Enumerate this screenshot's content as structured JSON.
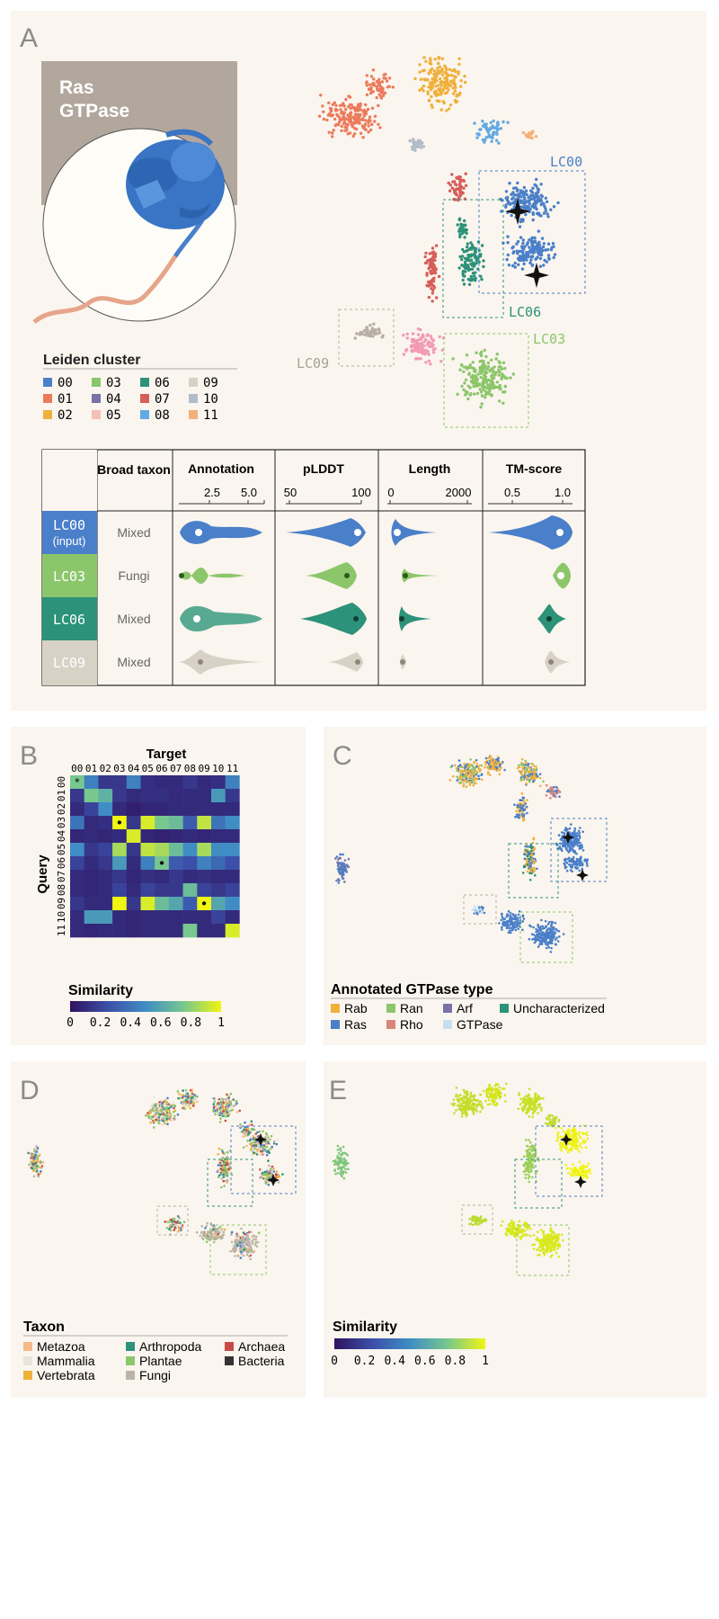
{
  "panel_labels": {
    "a": "A",
    "b": "B",
    "c": "C",
    "d": "D",
    "e": "E"
  },
  "protein_label": [
    "Ras",
    "GTPase"
  ],
  "leiden": {
    "title": "Leiden cluster",
    "items": [
      {
        "id": "00",
        "color": "#4a7fc9"
      },
      {
        "id": "01",
        "color": "#ec7a5c"
      },
      {
        "id": "02",
        "color": "#f0b03c"
      },
      {
        "id": "03",
        "color": "#8cc66b"
      },
      {
        "id": "04",
        "color": "#7773a9"
      },
      {
        "id": "05",
        "color": "#f2c0b7"
      },
      {
        "id": "06",
        "color": "#2c9279"
      },
      {
        "id": "07",
        "color": "#d65e59"
      },
      {
        "id": "08",
        "color": "#63a9e3"
      },
      {
        "id": "09",
        "color": "#d8d1c6"
      },
      {
        "id": "10",
        "color": "#b2bcc8"
      },
      {
        "id": "11",
        "color": "#f5b07a"
      }
    ]
  },
  "umap_labels": {
    "lc00": "LC00",
    "lc06": "LC06",
    "lc03": "LC03",
    "lc09": "LC09"
  },
  "table": {
    "col_headers": [
      "Broad taxon",
      "Annotation",
      "pLDDT",
      "Length",
      "TM-score"
    ],
    "axis_ticks": [
      [
        "2.5",
        "5.0"
      ],
      [
        "50",
        "100"
      ],
      [
        "0",
        "2000"
      ],
      [
        "0.5",
        "1.0"
      ]
    ],
    "rows": [
      {
        "label": "LC00",
        "sub": "(input)",
        "taxon": "Mixed",
        "color": "#4a7fc9"
      },
      {
        "label": "LC03",
        "sub": "",
        "taxon": "Fungi",
        "color": "#8cc66b"
      },
      {
        "label": "LC06",
        "sub": "",
        "taxon": "Mixed",
        "color": "#2c9279"
      },
      {
        "label": "LC09",
        "sub": "",
        "taxon": "Mixed",
        "color": "#d8d1c6"
      }
    ]
  },
  "heatmap": {
    "title": "Target",
    "ylabel": "Query",
    "labels": [
      "00",
      "01",
      "02",
      "03",
      "04",
      "05",
      "06",
      "07",
      "08",
      "09",
      "10",
      "11"
    ],
    "colorbar_title": "Similarity",
    "colorbar_ticks": [
      "0",
      "0.2",
      "0.4",
      "0.6",
      "0.8",
      "1"
    ]
  },
  "chart_data": {
    "type": "heatmap",
    "x": [
      "00",
      "01",
      "02",
      "03",
      "04",
      "05",
      "06",
      "07",
      "08",
      "09",
      "10",
      "11"
    ],
    "y": [
      "00",
      "01",
      "02",
      "03",
      "04",
      "05",
      "06",
      "07",
      "08",
      "09",
      "10",
      "11"
    ],
    "values": [
      [
        0.75,
        0.45,
        0.15,
        0.15,
        0.45,
        0.12,
        0.1,
        0.1,
        0.15,
        0.1,
        0.12,
        0.45
      ],
      [
        0.15,
        0.75,
        0.65,
        0.15,
        0.1,
        0.12,
        0.12,
        0.1,
        0.1,
        0.1,
        0.55,
        0.15
      ],
      [
        0.1,
        0.2,
        0.5,
        0.1,
        0.05,
        0.08,
        0.08,
        0.1,
        0.1,
        0.1,
        0.1,
        0.1
      ],
      [
        0.4,
        0.1,
        0.12,
        1.0,
        0.15,
        0.95,
        0.75,
        0.7,
        0.3,
        0.9,
        0.4,
        0.5
      ],
      [
        0.08,
        0.1,
        0.08,
        0.1,
        0.95,
        0.08,
        0.06,
        0.08,
        0.1,
        0.08,
        0.1,
        0.1
      ],
      [
        0.5,
        0.15,
        0.2,
        0.85,
        0.15,
        0.9,
        0.85,
        0.7,
        0.5,
        0.85,
        0.5,
        0.5
      ],
      [
        0.2,
        0.1,
        0.15,
        0.55,
        0.1,
        0.45,
        0.75,
        0.3,
        0.25,
        0.45,
        0.35,
        0.25
      ],
      [
        0.1,
        0.08,
        0.1,
        0.15,
        0.08,
        0.12,
        0.1,
        0.15,
        0.1,
        0.12,
        0.1,
        0.1
      ],
      [
        0.1,
        0.08,
        0.1,
        0.2,
        0.1,
        0.2,
        0.15,
        0.15,
        0.7,
        0.2,
        0.15,
        0.2
      ],
      [
        0.15,
        0.1,
        0.1,
        1.0,
        0.15,
        0.95,
        0.7,
        0.6,
        0.3,
        1.0,
        0.6,
        0.5
      ],
      [
        0.1,
        0.55,
        0.55,
        0.1,
        0.08,
        0.1,
        0.1,
        0.1,
        0.1,
        0.1,
        0.2,
        0.1
      ],
      [
        0.1,
        0.08,
        0.1,
        0.1,
        0.08,
        0.1,
        0.1,
        0.1,
        0.75,
        0.1,
        0.1,
        0.95
      ]
    ],
    "colorbar": "Similarity",
    "range": [
      0,
      1
    ]
  },
  "gtpase_legend": {
    "title": "Annotated GTPase type",
    "items": [
      {
        "label": "Rab",
        "color": "#f0b03c"
      },
      {
        "label": "Ran",
        "color": "#8cc66b"
      },
      {
        "label": "Arf",
        "color": "#7773a9"
      },
      {
        "label": "Uncharacterized",
        "color": "#2c9279"
      },
      {
        "label": "Ras",
        "color": "#4a7fc9"
      },
      {
        "label": "Rho",
        "color": "#d9857a"
      },
      {
        "label": "GTPase",
        "color": "#c5dff2"
      }
    ]
  },
  "taxon_legend": {
    "title": "Taxon",
    "items": [
      {
        "label": "Metazoa",
        "color": "#f6b98a"
      },
      {
        "label": "Arthropoda",
        "color": "#2c9279"
      },
      {
        "label": "Archaea",
        "color": "#c94a45"
      },
      {
        "label": "Mammalia",
        "color": "#e8e4dc"
      },
      {
        "label": "Plantae",
        "color": "#8cc66b"
      },
      {
        "label": "Bacteria",
        "color": "#333333"
      },
      {
        "label": "Vertebrata",
        "color": "#f0b03c"
      },
      {
        "label": "Fungi",
        "color": "#bdb3a8"
      }
    ]
  },
  "similarity_legend": {
    "title": "Similarity",
    "ticks": [
      "0",
      "0.2",
      "0.4",
      "0.6",
      "0.8",
      "1"
    ]
  }
}
